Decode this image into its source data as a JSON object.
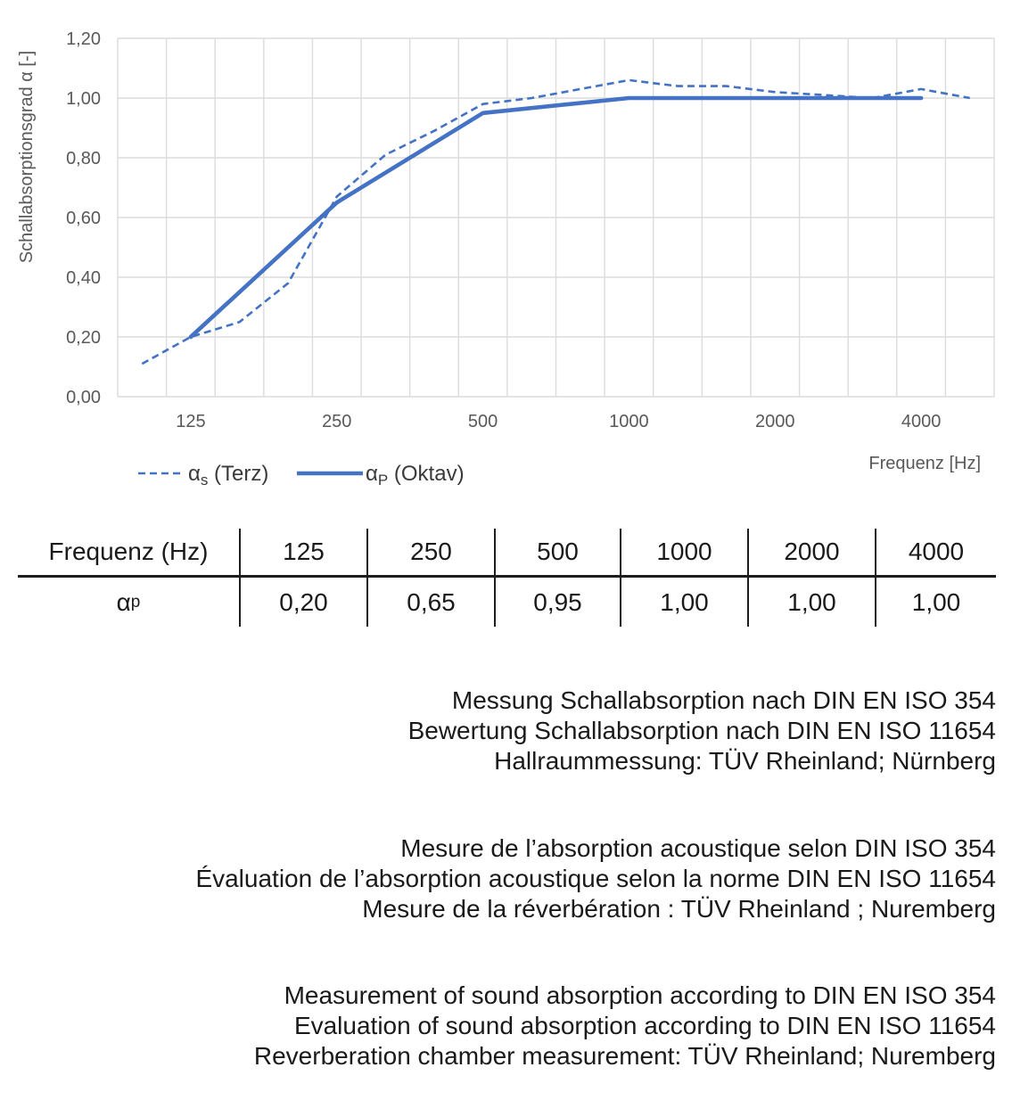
{
  "chart": {
    "legend_items": [
      {
        "base": "α",
        "sub": "s",
        "rest": " (Terz)",
        "style": "dashed"
      },
      {
        "base": "α",
        "sub": "P",
        "rest": " (Oktav)",
        "style": "solid"
      }
    ]
  },
  "chart_data": {
    "type": "line",
    "title": "",
    "xlabel": "Frequenz [Hz]",
    "ylabel": "Schallabsorptionsgrad α [-]",
    "ylim": [
      0,
      1.2
    ],
    "grid": true,
    "legend_position": "bottom-left",
    "line_color": "#4472C4",
    "gridline_color": "#DCDCDC",
    "axis_text_color": "#595959",
    "legend_text_color": "#3a3a3a",
    "x_scale": "third-octave log categories",
    "bands": [
      100,
      125,
      160,
      200,
      250,
      315,
      400,
      500,
      630,
      800,
      1000,
      1250,
      1600,
      2000,
      2500,
      3150,
      4000,
      5000
    ],
    "y_tick_labels": [
      "0,00",
      "0,20",
      "0,40",
      "0,60",
      "0,80",
      "1,00",
      "1,20"
    ],
    "y_tick_values": [
      0,
      0.2,
      0.4,
      0.6,
      0.8,
      1.0,
      1.2
    ],
    "x_tick_labels": [
      "125",
      "250",
      "500",
      "1000",
      "2000",
      "4000"
    ],
    "series": [
      {
        "name": "αs (Terz)",
        "style": "dashed",
        "x": [
          100,
          125,
          160,
          200,
          250,
          315,
          400,
          500,
          630,
          800,
          1000,
          1250,
          1600,
          2000,
          2500,
          3150,
          4000,
          5000
        ],
        "values": [
          0.11,
          0.2,
          0.25,
          0.38,
          0.67,
          0.81,
          0.89,
          0.98,
          1.0,
          1.03,
          1.06,
          1.04,
          1.04,
          1.02,
          1.01,
          1.0,
          1.03,
          1.0
        ]
      },
      {
        "name": "αP (Oktav)",
        "style": "solid",
        "x": [
          125,
          250,
          500,
          1000,
          2000,
          4000
        ],
        "values": [
          0.2,
          0.65,
          0.95,
          1.0,
          1.0,
          1.0
        ]
      }
    ]
  },
  "table": {
    "header_label": "Frequenz (Hz)",
    "frequencies": [
      "125",
      "250",
      "500",
      "1000",
      "2000",
      "4000"
    ],
    "row_symbol": {
      "base": "α",
      "sub": "p"
    },
    "values": [
      "0,20",
      "0,65",
      "0,95",
      "1,00",
      "1,00",
      "1,00"
    ]
  },
  "notes": {
    "de": [
      "Messung Schallabsorption nach DIN EN ISO 354",
      "Bewertung Schallabsorption nach DIN EN ISO 11654",
      "Hallraummessung: TÜV Rheinland; Nürnberg"
    ],
    "fr": [
      "Mesure de l’absorption acoustique selon DIN ISO 354",
      "Évaluation de l’absorption acoustique selon la norme DIN EN ISO 11654",
      "Mesure de la réverbération : TÜV Rheinland ; Nuremberg"
    ],
    "en": [
      "Measurement of sound absorption according to DIN EN ISO 354",
      "Evaluation of sound absorption according to DIN EN ISO 11654",
      "Reverberation chamber measurement: TÜV Rheinland; Nuremberg"
    ]
  }
}
